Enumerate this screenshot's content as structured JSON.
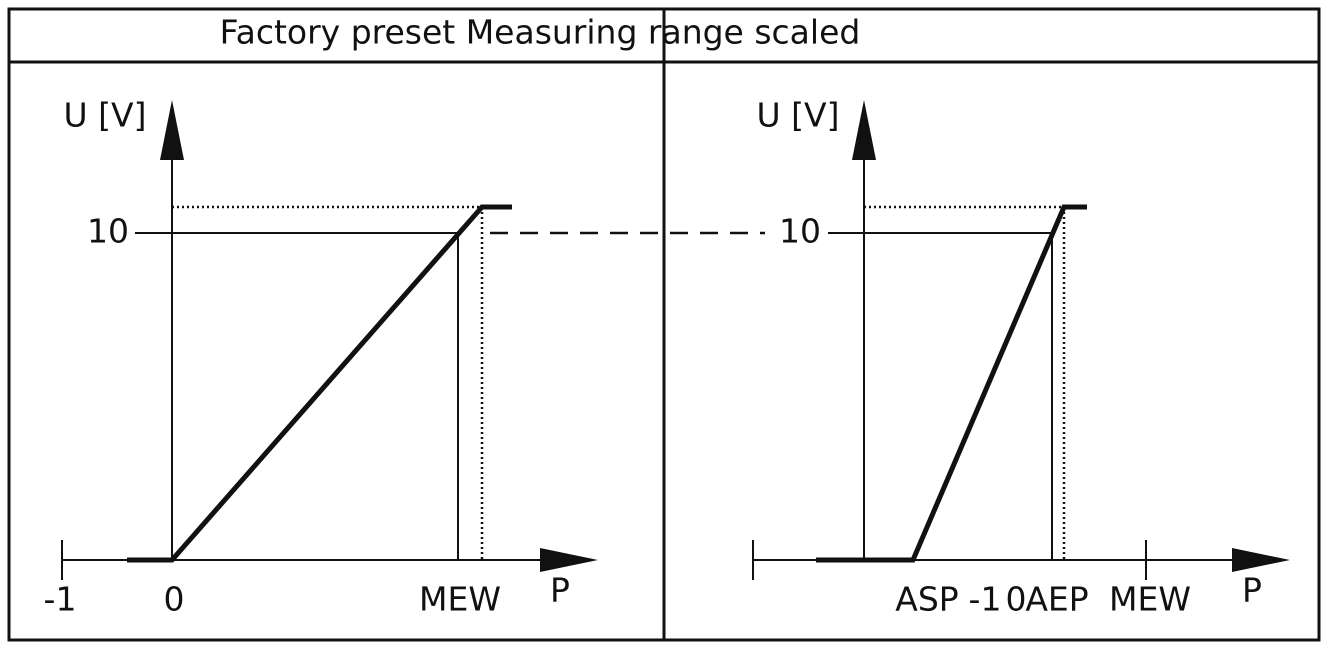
{
  "header": {
    "title": "Factory preset Measuring range scaled"
  },
  "left": {
    "y_label": "U [V]",
    "y_tick": "10",
    "x_labels": [
      "-1",
      "0",
      "MEW"
    ],
    "x_label": "P"
  },
  "right": {
    "y_label": "U [V]",
    "y_tick": "10",
    "x_labels": [
      "ASP",
      "-1",
      "0",
      "AEP",
      "MEW"
    ],
    "x_label": "P"
  }
}
